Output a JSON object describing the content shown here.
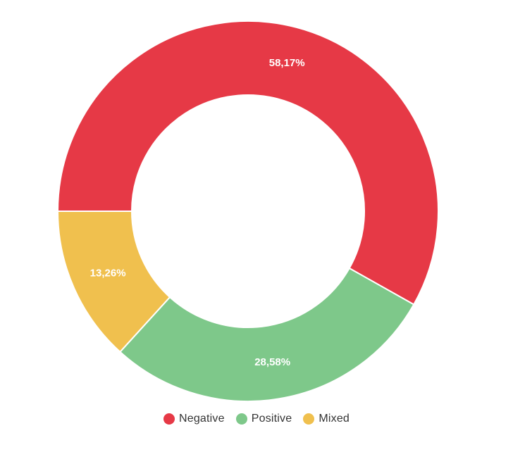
{
  "chart_data": {
    "type": "pie",
    "donut": true,
    "series": [
      {
        "name": "Negative",
        "value": 58.17,
        "label": "58,17%",
        "color": "#e63946"
      },
      {
        "name": "Positive",
        "value": 28.58,
        "label": "28,58%",
        "color": "#7ec88a"
      },
      {
        "name": "Mixed",
        "value": 13.26,
        "label": "13,26%",
        "color": "#f0c04e"
      }
    ],
    "legend": {
      "placement": "bottom"
    },
    "title": ""
  }
}
